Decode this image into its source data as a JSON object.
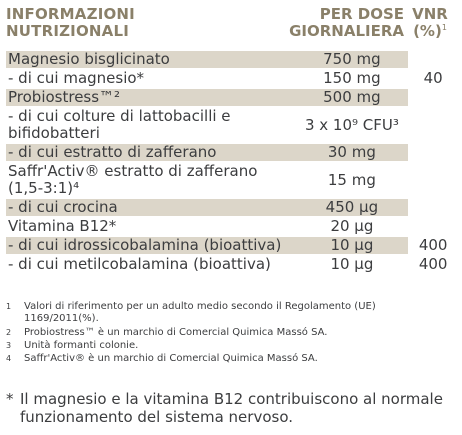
{
  "header": {
    "left": "INFORMAZIONI NUTRIZIONALI",
    "left_line1": "INFORMAZIONI",
    "left_line2": "NUTRIZIONALI",
    "mid_line1": "PER DOSE",
    "mid_line2": "GIORNALIERA",
    "right_line1": "VNR",
    "right_line2": "(%)",
    "right_sup": "1"
  },
  "rows": [
    {
      "name": "Magnesio bisglicinato",
      "amount": "750 mg",
      "vnr": "",
      "shaded": true
    },
    {
      "name": "- di cui magnesio*",
      "amount": "150 mg",
      "vnr": "40",
      "shaded": false
    },
    {
      "name": "Probiostress™²",
      "amount": "500 mg",
      "vnr": "",
      "shaded": true
    },
    {
      "name": "- di cui colture di lattobacilli e bifidobatteri",
      "amount": "3 x 10⁹ CFU³",
      "vnr": "",
      "shaded": false
    },
    {
      "name": "- di cui estratto di zafferano",
      "amount": "30 mg",
      "vnr": "",
      "shaded": true
    },
    {
      "name": "Saffr'Activ® estratto di zafferano (1,5-3:1)⁴",
      "amount": "15 mg",
      "vnr": "",
      "shaded": false
    },
    {
      "name": "- di cui crocina",
      "amount": "450 µg",
      "vnr": "",
      "shaded": true
    },
    {
      "name": "Vitamina B12*",
      "amount": "20 µg",
      "vnr": "",
      "shaded": false
    },
    {
      "name": "- di cui idrossicobalamina (bioattiva)",
      "amount": "10 µg",
      "vnr": "400",
      "shaded": true
    },
    {
      "name": "- di cui metilcobalamina (bioattiva)",
      "amount": "10 µg",
      "vnr": "400",
      "shaded": false
    }
  ],
  "footnotes": [
    {
      "num": "1",
      "text": "Valori di riferimento per un adulto medio secondo il Regolamento (UE) 1169/2011(%)."
    },
    {
      "num": "2",
      "text": "Probiostress™ è un marchio di Comercial Quimica Massó SA."
    },
    {
      "num": "3",
      "text": "Unità formanti colonie."
    },
    {
      "num": "4",
      "text": "Saffr'Activ® è un marchio di Comercial Quimica Massó SA."
    }
  ],
  "bottom_note": {
    "mark": "*",
    "text": "Il magnesio e la vitamina B12 contribuiscono al normale funzionamento del sistema nervoso."
  }
}
